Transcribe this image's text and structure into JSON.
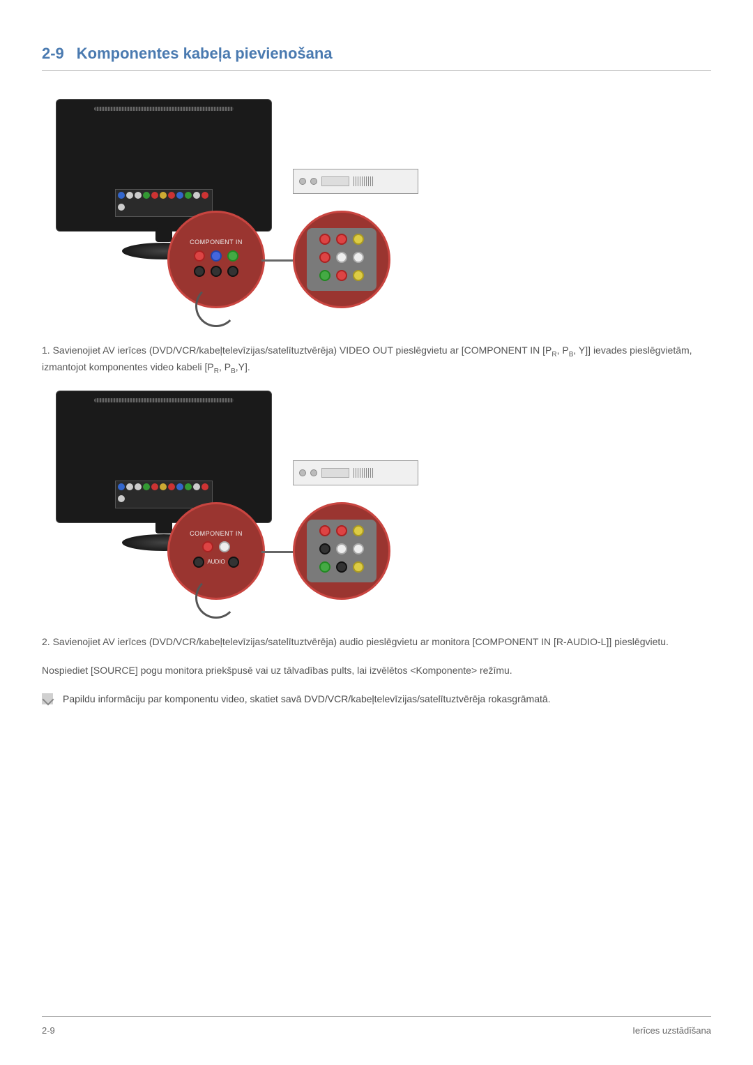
{
  "header": {
    "section_number": "2-9",
    "section_title": "Komponentes kabeļa pievienošana"
  },
  "diagram": {
    "zoom_label": "COMPONENT IN",
    "audio_label": "AUDIO",
    "colors": {
      "monitor_screen": "#1a1a1a",
      "zoom_bg": "#9a3530",
      "zoom_border": "#c94540",
      "jack_red": "#dd4444",
      "jack_blue": "#4466dd",
      "jack_green": "#44aa44",
      "jack_yellow": "#ddcc44",
      "jack_white": "#eeeeee"
    }
  },
  "step1": {
    "prefix": "1. Savienojiet AV ierīces (DVD/VCR/kabeļtelevīzijas/satelītuztvērēja) VIDEO OUT pieslēgvietu ar [COMPONENT IN [P",
    "sub1": "R",
    "mid1": ", P",
    "sub2": "B",
    "mid2": ", Y]] ievades pieslēgvietām, izmantojot komponentes video kabeli [P",
    "sub3": "R",
    "mid3": ", P",
    "sub4": "B",
    "suffix": ",Y]."
  },
  "step2": {
    "text": "2. Savienojiet AV ierīces (DVD/VCR/kabeļtelevīzijas/satelītuztvērēja) audio pieslēgvietu ar monitora [COMPONENT IN [R-AUDIO-L]] pieslēgvietu."
  },
  "step3": {
    "text": "Nospiediet [SOURCE] pogu monitora priekšpusē vai uz tālvadības pults, lai izvēlētos <Komponente> režīmu."
  },
  "note": {
    "text": "Papildu informāciju par komponentu video, skatiet savā DVD/VCR/kabeļtelevīzijas/satelītuztvērēja rokasgrāmatā."
  },
  "footer": {
    "left": "2-9",
    "right": "Ierīces uzstādīšana"
  }
}
